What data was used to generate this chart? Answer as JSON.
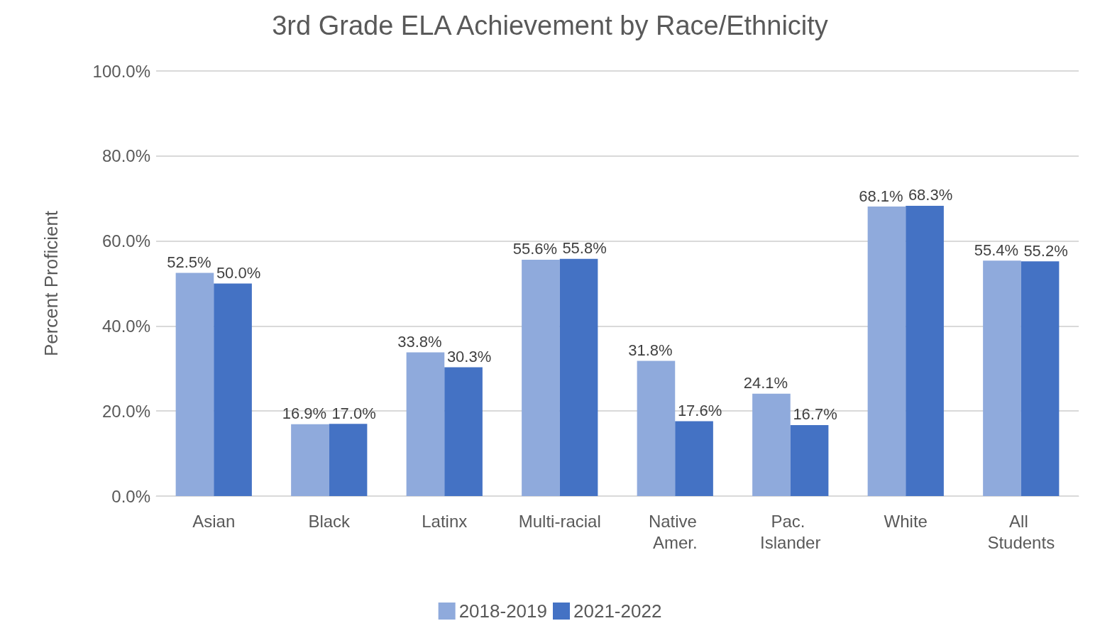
{
  "chart_data": {
    "type": "bar",
    "title": "3rd Grade ELA Achievement by Race/Ethnicity",
    "ylabel": "Percent Proficient",
    "categories": [
      "Asian",
      "Black",
      "Latinx",
      "Multi-racial",
      "Native Amer.",
      "Pac. Islander",
      "White",
      "All Students"
    ],
    "series": [
      {
        "name": "2018-2019",
        "color": "#8faadc",
        "values": [
          52.5,
          16.9,
          33.8,
          55.6,
          31.8,
          24.1,
          68.1,
          55.4
        ],
        "value_labels": [
          "52.5%",
          "16.9%",
          "33.8%",
          "55.6%",
          "31.8%",
          "24.1%",
          "68.1%",
          "55.4%"
        ]
      },
      {
        "name": "2021-2022",
        "color": "#4472c4",
        "values": [
          50.0,
          17.0,
          30.3,
          55.8,
          17.6,
          16.7,
          68.3,
          55.2
        ],
        "value_labels": [
          "50.0%",
          "17.0%",
          "30.3%",
          "55.8%",
          "17.6%",
          "16.7%",
          "68.3%",
          "55.2%"
        ]
      }
    ],
    "ylim": [
      0,
      100
    ],
    "yticks": [
      {
        "value": 0,
        "label": "0.0%"
      },
      {
        "value": 20,
        "label": "20.0%"
      },
      {
        "value": 40,
        "label": "40.0%"
      },
      {
        "value": 60,
        "label": "60.0%"
      },
      {
        "value": 80,
        "label": "80.0%"
      },
      {
        "value": 100,
        "label": "100.0%"
      }
    ],
    "grid": "y",
    "legend": "bottom"
  }
}
